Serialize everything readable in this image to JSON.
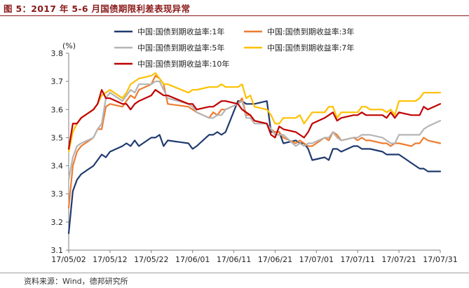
{
  "figure": {
    "title": "图 5：2017 年 5-6 月国债期限利差表现异常",
    "source": "资料来源：Wind，德邦研究所"
  },
  "colors": {
    "title": "#8b1a1a",
    "series": [
      "#1f3a6e",
      "#ed7d31",
      "#b5b5b5",
      "#ffc000",
      "#c00000"
    ]
  },
  "chart_data": {
    "type": "line",
    "title": "",
    "xlabel": "",
    "ylabel": "(%)",
    "ylim": [
      3.1,
      3.8
    ],
    "yticks": [
      "3.1",
      "3.2",
      "3.3",
      "3.4",
      "3.5",
      "3.6",
      "3.7",
      "3.8"
    ],
    "xticks": [
      "17/05/02",
      "17/05/12",
      "17/05/22",
      "17/06/01",
      "17/06/11",
      "17/06/21",
      "17/07/01",
      "17/07/11",
      "17/07/21",
      "17/07/31"
    ],
    "x": [
      "17/05/02",
      "17/05/03",
      "17/05/04",
      "17/05/05",
      "17/05/08",
      "17/05/09",
      "17/05/10",
      "17/05/11",
      "17/05/12",
      "17/05/15",
      "17/05/16",
      "17/05/17",
      "17/05/18",
      "17/05/19",
      "17/05/22",
      "17/05/23",
      "17/05/24",
      "17/05/25",
      "17/05/26",
      "17/05/31",
      "17/06/01",
      "17/06/02",
      "17/06/05",
      "17/06/06",
      "17/06/07",
      "17/06/08",
      "17/06/09",
      "17/06/12",
      "17/06/13",
      "17/06/14",
      "17/06/15",
      "17/06/16",
      "17/06/19",
      "17/06/20",
      "17/06/21",
      "17/06/22",
      "17/06/23",
      "17/06/26",
      "17/06/27",
      "17/06/28",
      "17/06/29",
      "17/06/30",
      "17/07/03",
      "17/07/04",
      "17/07/05",
      "17/07/06",
      "17/07/07",
      "17/07/10",
      "17/07/11",
      "17/07/12",
      "17/07/13",
      "17/07/14",
      "17/07/17",
      "17/07/18",
      "17/07/19",
      "17/07/20",
      "17/07/21",
      "17/07/24",
      "17/07/25",
      "17/07/26",
      "17/07/27",
      "17/07/28",
      "17/07/31"
    ],
    "legend": {
      "placement": "top",
      "columns": 2
    },
    "series": [
      {
        "name": "中国:国债到期收益率:1年",
        "color": "#1f3a6e",
        "values": [
          3.16,
          3.31,
          3.35,
          3.37,
          3.4,
          3.42,
          3.44,
          3.43,
          3.45,
          3.47,
          3.48,
          3.47,
          3.49,
          3.47,
          3.5,
          3.5,
          3.51,
          3.47,
          3.49,
          3.48,
          3.46,
          3.47,
          3.51,
          3.51,
          3.52,
          3.51,
          3.52,
          3.63,
          3.63,
          3.62,
          3.62,
          3.62,
          3.63,
          3.52,
          3.52,
          3.52,
          3.48,
          3.49,
          3.48,
          3.48,
          3.46,
          3.42,
          3.43,
          3.42,
          3.46,
          3.46,
          3.45,
          3.47,
          3.47,
          3.46,
          3.46,
          3.46,
          3.45,
          3.44,
          3.44,
          3.44,
          3.44,
          3.41,
          3.4,
          3.39,
          3.39,
          3.38,
          3.38
        ]
      },
      {
        "name": "中国:国债到期收益率:3年",
        "color": "#ed7d31",
        "values": [
          3.25,
          3.4,
          3.45,
          3.47,
          3.5,
          3.53,
          3.53,
          3.61,
          3.62,
          3.61,
          3.63,
          3.65,
          3.64,
          3.67,
          3.69,
          3.72,
          3.71,
          3.69,
          3.62,
          3.61,
          3.6,
          3.59,
          3.57,
          3.59,
          3.58,
          3.6,
          3.6,
          3.62,
          3.64,
          3.58,
          3.58,
          3.56,
          3.55,
          3.53,
          3.52,
          3.52,
          3.5,
          3.48,
          3.49,
          3.48,
          3.47,
          3.47,
          3.5,
          3.49,
          3.52,
          3.51,
          3.49,
          3.5,
          3.49,
          3.5,
          3.49,
          3.49,
          3.48,
          3.48,
          3.47,
          3.48,
          3.48,
          3.47,
          3.48,
          3.48,
          3.5,
          3.49,
          3.48
        ]
      },
      {
        "name": "中国:国债到期收益率:5年",
        "color": "#b5b5b5",
        "values": [
          3.35,
          3.43,
          3.47,
          3.48,
          3.5,
          3.53,
          3.55,
          3.64,
          3.66,
          3.63,
          3.65,
          3.67,
          3.66,
          3.69,
          3.69,
          3.7,
          3.7,
          3.67,
          3.64,
          3.62,
          3.61,
          3.59,
          3.57,
          3.57,
          3.58,
          3.58,
          3.6,
          3.62,
          3.63,
          3.57,
          3.57,
          3.55,
          3.55,
          3.53,
          3.51,
          3.51,
          3.51,
          3.47,
          3.48,
          3.47,
          3.48,
          3.48,
          3.5,
          3.5,
          3.52,
          3.5,
          3.49,
          3.5,
          3.5,
          3.51,
          3.51,
          3.51,
          3.5,
          3.49,
          3.48,
          3.48,
          3.51,
          3.51,
          3.51,
          3.51,
          3.53,
          3.54,
          3.56
        ]
      },
      {
        "name": "中国:国债到期收益率:7年",
        "color": "#ffc000",
        "values": [
          3.45,
          3.52,
          3.55,
          3.57,
          3.6,
          3.62,
          3.65,
          3.66,
          3.67,
          3.64,
          3.66,
          3.69,
          3.7,
          3.71,
          3.72,
          3.73,
          3.71,
          3.69,
          3.69,
          3.66,
          3.67,
          3.67,
          3.68,
          3.68,
          3.68,
          3.69,
          3.68,
          3.68,
          3.69,
          3.64,
          3.65,
          3.61,
          3.6,
          3.58,
          3.55,
          3.55,
          3.57,
          3.57,
          3.58,
          3.55,
          3.57,
          3.59,
          3.59,
          3.61,
          3.61,
          3.57,
          3.59,
          3.59,
          3.59,
          3.61,
          3.61,
          3.6,
          3.6,
          3.59,
          3.6,
          3.58,
          3.63,
          3.63,
          3.63,
          3.64,
          3.66,
          3.66,
          3.66
        ]
      },
      {
        "name": "中国:国债到期收益率:10年",
        "color": "#c00000",
        "values": [
          3.46,
          3.55,
          3.55,
          3.57,
          3.6,
          3.62,
          3.67,
          3.64,
          3.64,
          3.62,
          3.62,
          3.6,
          3.62,
          3.63,
          3.65,
          3.67,
          3.66,
          3.65,
          3.65,
          3.62,
          3.62,
          3.6,
          3.61,
          3.61,
          3.62,
          3.63,
          3.63,
          3.62,
          3.6,
          3.59,
          3.58,
          3.56,
          3.55,
          3.51,
          3.5,
          3.54,
          3.53,
          3.52,
          3.51,
          3.5,
          3.52,
          3.55,
          3.57,
          3.58,
          3.59,
          3.56,
          3.57,
          3.58,
          3.58,
          3.59,
          3.58,
          3.58,
          3.58,
          3.57,
          3.59,
          3.57,
          3.59,
          3.58,
          3.58,
          3.58,
          3.61,
          3.6,
          3.62
        ]
      }
    ]
  }
}
